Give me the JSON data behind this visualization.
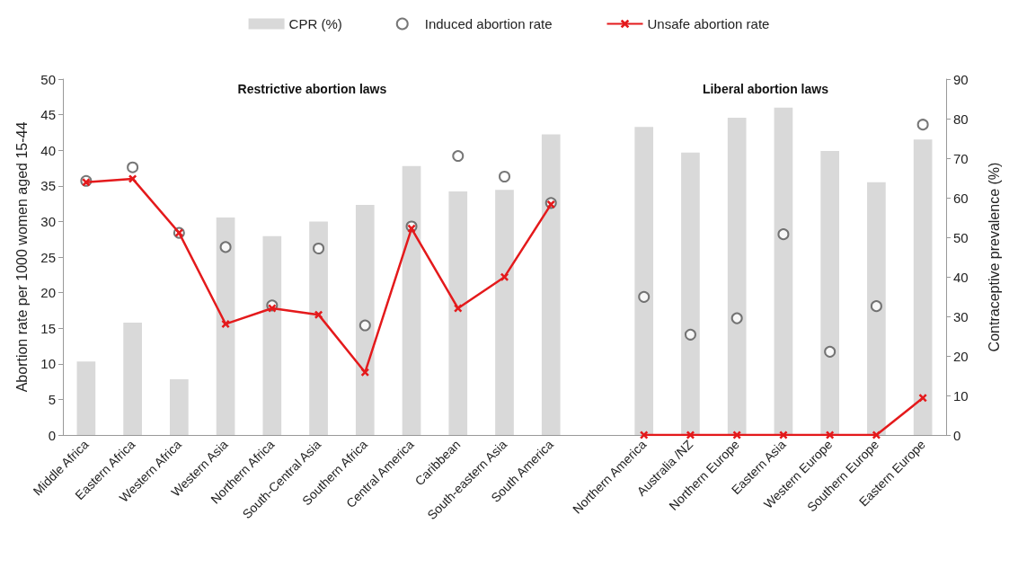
{
  "chart_data": {
    "type": "bar",
    "categories": [
      "Middle Africa",
      "Eastern Africa",
      "Western Africa",
      "Western Asia",
      "Northern Africa",
      "South-Central Asia",
      "Southern Africa",
      "Central America",
      "Caribbean",
      "South-eastern Asia",
      "South America",
      null,
      "Northern America",
      "Australia /NZ",
      "Northern Europe",
      "Eastern Asia",
      "Western Europe",
      "Southern Europe",
      "Eastern Europe"
    ],
    "series": [
      {
        "name": "CPR (%)",
        "axis": "y2",
        "color": "#d9d9d9",
        "values": [
          18.6,
          28.4,
          14.1,
          55,
          50.3,
          54,
          58.2,
          68,
          61.6,
          62,
          76,
          null,
          77.9,
          71.4,
          80.2,
          82.8,
          71.8,
          63.9,
          74.7
        ]
      },
      {
        "name": "Induced abortion rate",
        "type": "scatter",
        "marker": "circle",
        "color": "#555555",
        "values": [
          35.7,
          37.6,
          28.4,
          26.4,
          18.2,
          26.2,
          15.4,
          29.3,
          39.2,
          36.3,
          32.6,
          null,
          19.4,
          14.1,
          16.4,
          28.2,
          11.7,
          18.1,
          43.6
        ]
      },
      {
        "name": "Unsafe abortion rate",
        "type": "line",
        "marker": "cross",
        "color": "#e41a1c",
        "values": [
          35.5,
          36.0,
          28.4,
          15.6,
          17.8,
          16.9,
          8.8,
          29.0,
          17.8,
          22.2,
          32.4,
          null,
          0,
          0,
          0,
          0,
          0,
          0,
          5.2
        ]
      }
    ],
    "ylabel": "Abortion rate per 1000 women aged 15-44",
    "y2label": "Contraceptive prevalence (%)",
    "ylim": [
      0,
      50
    ],
    "yticks": [
      0,
      5,
      10,
      15,
      20,
      25,
      30,
      35,
      40,
      45,
      50
    ],
    "y2lim": [
      0,
      90
    ],
    "y2ticks": [
      0,
      10,
      20,
      30,
      40,
      50,
      60,
      70,
      80,
      90
    ],
    "annotations": [
      "Restrictive abortion laws",
      "Liberal abortion laws"
    ],
    "legend": "top",
    "grid": false
  }
}
